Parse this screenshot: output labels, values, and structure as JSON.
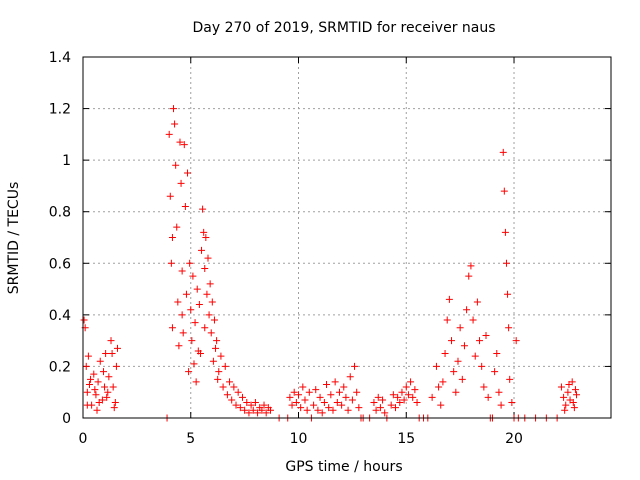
{
  "chart_data": {
    "type": "scatter",
    "title": "Day 270 of 2019, SRMTID for receiver naus",
    "xlabel": "GPS time / hours",
    "ylabel": "SRMTID / TECUs",
    "xlim": [
      0,
      24.5
    ],
    "ylim": [
      0,
      1.4
    ],
    "xticks": [
      0,
      5,
      10,
      15,
      20
    ],
    "xtick_labels": [
      "0",
      "5",
      "10",
      "15",
      "20"
    ],
    "yticks": [
      0,
      0.2,
      0.4,
      0.6,
      0.8,
      1.0,
      1.2,
      1.4
    ],
    "ytick_labels": [
      "0",
      "0.2",
      "0.4",
      "0.6",
      "0.8",
      "1",
      "1.2",
      "1.4"
    ],
    "grid": true,
    "marker": "+",
    "series_color": "#ff0000",
    "series": [
      {
        "name": "SRMTID",
        "points": [
          [
            0.05,
            0.38
          ],
          [
            0.1,
            0.35
          ],
          [
            0.15,
            0.2
          ],
          [
            0.2,
            0.1
          ],
          [
            0.3,
            0.13
          ],
          [
            0.4,
            0.05
          ],
          [
            0.5,
            0.17
          ],
          [
            0.6,
            0.09
          ],
          [
            0.7,
            0.14
          ],
          [
            0.8,
            0.22
          ],
          [
            0.9,
            0.07
          ],
          [
            1.0,
            0.12
          ],
          [
            1.1,
            0.08
          ],
          [
            1.2,
            0.16
          ],
          [
            1.3,
            0.3
          ],
          [
            1.35,
            0.25
          ],
          [
            1.4,
            0.12
          ],
          [
            1.5,
            0.06
          ],
          [
            1.55,
            0.2
          ],
          [
            1.6,
            0.27
          ],
          [
            0.2,
            0.05
          ],
          [
            0.35,
            0.15
          ],
          [
            0.55,
            0.11
          ],
          [
            0.75,
            0.06
          ],
          [
            0.95,
            0.18
          ],
          [
            1.15,
            0.1
          ],
          [
            1.45,
            0.04
          ],
          [
            0.25,
            0.24
          ],
          [
            0.65,
            0.03
          ],
          [
            1.05,
            0.25
          ],
          [
            3.9,
            0.0
          ],
          [
            4.0,
            1.1
          ],
          [
            4.05,
            0.86
          ],
          [
            4.1,
            0.6
          ],
          [
            4.15,
            0.35
          ],
          [
            4.2,
            1.2
          ],
          [
            4.25,
            1.14
          ],
          [
            4.3,
            0.98
          ],
          [
            4.35,
            0.74
          ],
          [
            4.4,
            0.45
          ],
          [
            4.45,
            0.28
          ],
          [
            4.5,
            1.07
          ],
          [
            4.55,
            0.91
          ],
          [
            4.6,
            0.57
          ],
          [
            4.65,
            0.33
          ],
          [
            4.7,
            1.06
          ],
          [
            4.75,
            0.82
          ],
          [
            4.8,
            0.48
          ],
          [
            4.85,
            0.95
          ],
          [
            4.9,
            0.18
          ],
          [
            4.95,
            0.6
          ],
          [
            5.0,
            0.42
          ],
          [
            5.05,
            0.3
          ],
          [
            5.1,
            0.55
          ],
          [
            5.15,
            0.21
          ],
          [
            5.2,
            0.37
          ],
          [
            5.25,
            0.14
          ],
          [
            5.3,
            0.5
          ],
          [
            5.35,
            0.26
          ],
          [
            5.4,
            0.44
          ],
          [
            5.5,
            0.65
          ],
          [
            5.55,
            0.81
          ],
          [
            5.6,
            0.72
          ],
          [
            5.65,
            0.58
          ],
          [
            5.7,
            0.7
          ],
          [
            5.75,
            0.48
          ],
          [
            5.8,
            0.62
          ],
          [
            5.85,
            0.4
          ],
          [
            5.9,
            0.52
          ],
          [
            5.95,
            0.33
          ],
          [
            6.0,
            0.45
          ],
          [
            6.05,
            0.22
          ],
          [
            6.1,
            0.38
          ],
          [
            6.15,
            0.27
          ],
          [
            6.2,
            0.3
          ],
          [
            6.3,
            0.18
          ],
          [
            6.4,
            0.24
          ],
          [
            6.5,
            0.12
          ],
          [
            6.6,
            0.2
          ],
          [
            6.7,
            0.09
          ],
          [
            6.8,
            0.14
          ],
          [
            6.9,
            0.07
          ],
          [
            7.0,
            0.12
          ],
          [
            7.1,
            0.05
          ],
          [
            7.2,
            0.1
          ],
          [
            7.3,
            0.04
          ],
          [
            7.4,
            0.08
          ],
          [
            7.5,
            0.03
          ],
          [
            7.6,
            0.06
          ],
          [
            7.7,
            0.02
          ],
          [
            7.8,
            0.05
          ],
          [
            7.9,
            0.03
          ],
          [
            8.0,
            0.06
          ],
          [
            8.1,
            0.02
          ],
          [
            8.2,
            0.04
          ],
          [
            8.3,
            0.03
          ],
          [
            8.4,
            0.05
          ],
          [
            8.5,
            0.02
          ],
          [
            8.6,
            0.04
          ],
          [
            8.7,
            0.03
          ],
          [
            4.15,
            0.7
          ],
          [
            4.6,
            0.4
          ],
          [
            5.45,
            0.25
          ],
          [
            5.65,
            0.35
          ],
          [
            6.25,
            0.15
          ],
          [
            9.1,
            0.0
          ],
          [
            9.5,
            0.0
          ],
          [
            9.6,
            0.08
          ],
          [
            9.7,
            0.05
          ],
          [
            9.8,
            0.1
          ],
          [
            9.9,
            0.06
          ],
          [
            10.0,
            0.09
          ],
          [
            10.1,
            0.04
          ],
          [
            10.2,
            0.12
          ],
          [
            10.3,
            0.07
          ],
          [
            10.4,
            0.03
          ],
          [
            10.5,
            0.1
          ],
          [
            10.6,
            0.0
          ],
          [
            10.7,
            0.05
          ],
          [
            10.8,
            0.11
          ],
          [
            10.9,
            0.03
          ],
          [
            11.0,
            0.08
          ],
          [
            11.1,
            0.02
          ],
          [
            11.2,
            0.06
          ],
          [
            11.3,
            0.13
          ],
          [
            11.4,
            0.04
          ],
          [
            11.5,
            0.09
          ],
          [
            11.6,
            0.03
          ],
          [
            11.7,
            0.14
          ],
          [
            11.8,
            0.06
          ],
          [
            11.9,
            0.1
          ],
          [
            12.0,
            0.05
          ],
          [
            12.1,
            0.12
          ],
          [
            12.2,
            0.08
          ],
          [
            12.3,
            0.03
          ],
          [
            12.4,
            0.16
          ],
          [
            12.5,
            0.07
          ],
          [
            12.6,
            0.2
          ],
          [
            12.7,
            0.1
          ],
          [
            12.8,
            0.04
          ],
          [
            12.9,
            0.0
          ],
          [
            13.0,
            0.0
          ],
          [
            13.3,
            0.0
          ],
          [
            13.5,
            0.06
          ],
          [
            13.6,
            0.03
          ],
          [
            13.7,
            0.08
          ],
          [
            13.8,
            0.04
          ],
          [
            13.9,
            0.07
          ],
          [
            14.0,
            0.02
          ],
          [
            14.1,
            0.0
          ],
          [
            14.3,
            0.05
          ],
          [
            14.4,
            0.09
          ],
          [
            14.5,
            0.04
          ],
          [
            14.6,
            0.08
          ],
          [
            14.7,
            0.06
          ],
          [
            14.8,
            0.1
          ],
          [
            14.9,
            0.07
          ],
          [
            15.0,
            0.12
          ],
          [
            15.1,
            0.09
          ],
          [
            15.2,
            0.14
          ],
          [
            15.3,
            0.08
          ],
          [
            15.4,
            0.11
          ],
          [
            15.5,
            0.06
          ],
          [
            15.6,
            0.0
          ],
          [
            15.8,
            0.0
          ],
          [
            16.0,
            0.0
          ],
          [
            16.2,
            0.08
          ],
          [
            16.4,
            0.2
          ],
          [
            16.5,
            0.12
          ],
          [
            16.6,
            0.05
          ],
          [
            16.7,
            0.14
          ],
          [
            16.8,
            0.25
          ],
          [
            16.9,
            0.38
          ],
          [
            17.0,
            0.46
          ],
          [
            17.1,
            0.3
          ],
          [
            17.2,
            0.18
          ],
          [
            17.3,
            0.1
          ],
          [
            17.4,
            0.22
          ],
          [
            17.5,
            0.35
          ],
          [
            17.6,
            0.15
          ],
          [
            17.7,
            0.28
          ],
          [
            17.8,
            0.42
          ],
          [
            17.9,
            0.55
          ],
          [
            18.0,
            0.59
          ],
          [
            18.1,
            0.38
          ],
          [
            18.2,
            0.24
          ],
          [
            18.3,
            0.45
          ],
          [
            18.4,
            0.3
          ],
          [
            18.5,
            0.2
          ],
          [
            18.6,
            0.12
          ],
          [
            18.7,
            0.32
          ],
          [
            18.8,
            0.08
          ],
          [
            18.9,
            0.0
          ],
          [
            19.0,
            0.0
          ],
          [
            19.1,
            0.18
          ],
          [
            19.2,
            0.25
          ],
          [
            19.3,
            0.1
          ],
          [
            19.4,
            0.05
          ],
          [
            19.5,
            1.03
          ],
          [
            19.55,
            0.88
          ],
          [
            19.6,
            0.72
          ],
          [
            19.65,
            0.6
          ],
          [
            19.7,
            0.48
          ],
          [
            19.75,
            0.35
          ],
          [
            19.8,
            0.15
          ],
          [
            19.9,
            0.06
          ],
          [
            20.0,
            0.0
          ],
          [
            20.1,
            0.3
          ],
          [
            20.2,
            0.0
          ],
          [
            20.5,
            0.0
          ],
          [
            21.0,
            0.0
          ],
          [
            21.5,
            0.0
          ],
          [
            22.0,
            0.0
          ],
          [
            22.2,
            0.12
          ],
          [
            22.3,
            0.08
          ],
          [
            22.4,
            0.05
          ],
          [
            22.5,
            0.1
          ],
          [
            22.6,
            0.07
          ],
          [
            22.7,
            0.14
          ],
          [
            22.8,
            0.04
          ],
          [
            22.9,
            0.09
          ],
          [
            22.35,
            0.03
          ],
          [
            22.55,
            0.13
          ],
          [
            22.75,
            0.06
          ],
          [
            22.85,
            0.11
          ]
        ]
      }
    ]
  }
}
